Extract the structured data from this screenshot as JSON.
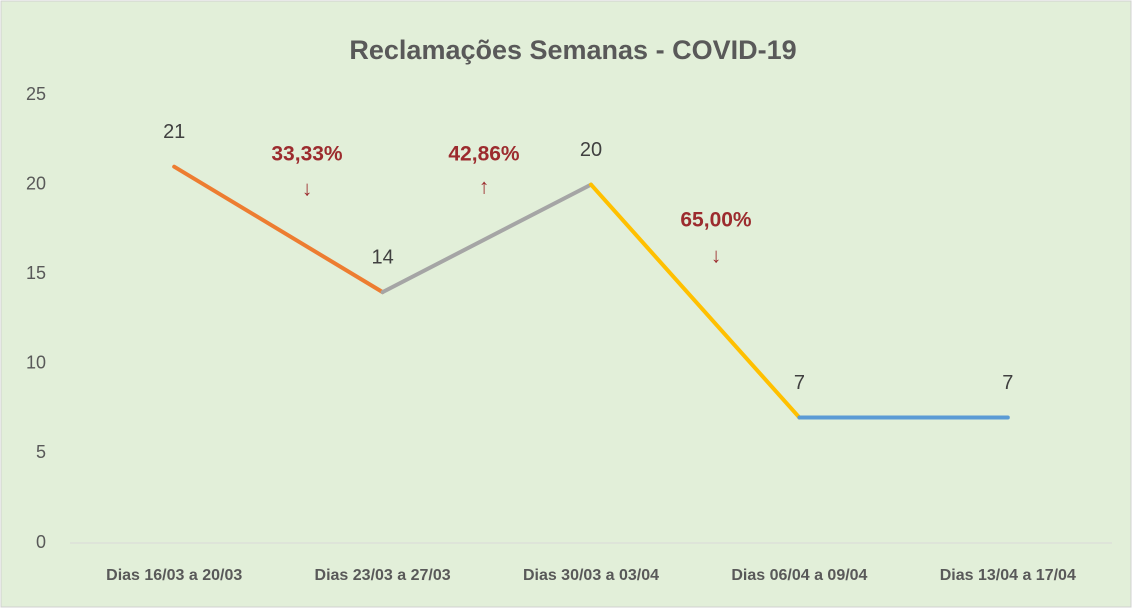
{
  "chart_data": {
    "type": "line",
    "title": "Reclamações  Semanas - COVID-19",
    "categories": [
      "Dias 16/03 a 20/03",
      "Dias 23/03 a 27/03",
      "Dias 30/03 a 03/04",
      "Dias 06/04 a 09/04",
      "Dias 13/04 a 17/04"
    ],
    "values": [
      21,
      14,
      20,
      7,
      7
    ],
    "segment_colors": [
      "#ed7d31",
      "#a5a5a5",
      "#ffc000",
      "#5b9bd5"
    ],
    "annotations": [
      {
        "text": "33,33%",
        "arrow": "↓"
      },
      {
        "text": "42,86%",
        "arrow": "↑"
      },
      {
        "text": "65,00%",
        "arrow": "↓"
      }
    ],
    "annotation_color": "#9c2b2e",
    "ylim": [
      0,
      25
    ],
    "yticks": [
      0,
      5,
      10,
      15,
      20,
      25
    ],
    "grid": false
  }
}
